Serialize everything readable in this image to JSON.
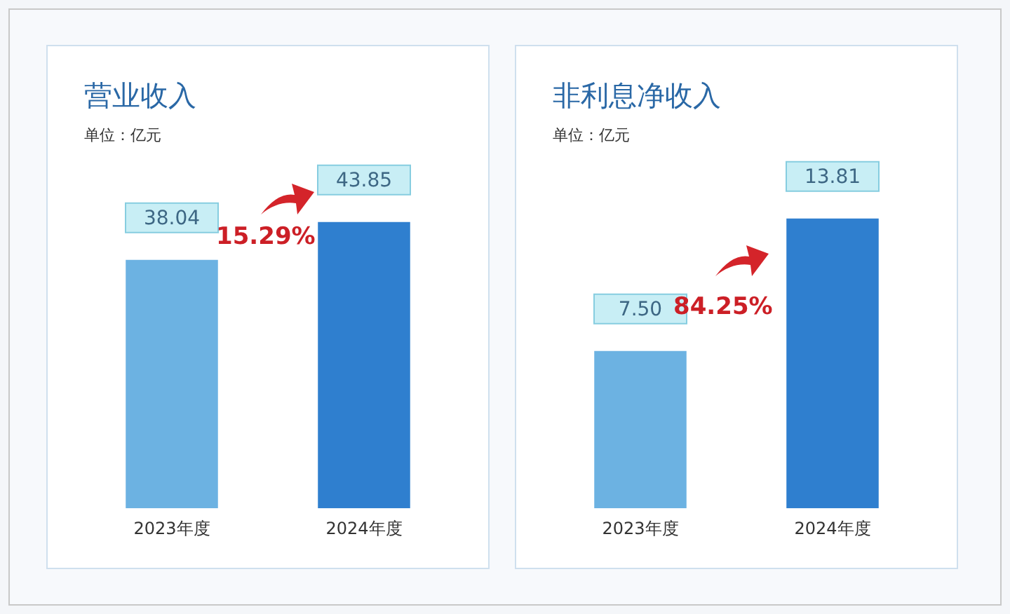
{
  "chart_data": [
    {
      "type": "bar",
      "title": "营业收入",
      "subtitle": "单位：亿元",
      "categories": [
        "2023年度",
        "2024年度"
      ],
      "values": [
        38.04,
        43.85
      ],
      "value_labels": [
        "38.04",
        "43.85"
      ],
      "colors": [
        "#6cb2e2",
        "#2f7fcf"
      ],
      "tick_labels": "x",
      "grid": false,
      "legend": false,
      "annotations": [
        "15.29%"
      ]
    },
    {
      "type": "bar",
      "title": "非利息净收入",
      "subtitle": "单位：亿元",
      "categories": [
        "2023年度",
        "2024年度"
      ],
      "values": [
        7.5,
        13.81
      ],
      "value_labels": [
        "7.50",
        "13.81"
      ],
      "colors": [
        "#6cb2e2",
        "#2f7fcf"
      ],
      "tick_labels": "x",
      "grid": false,
      "legend": false,
      "annotations": [
        "84.25%"
      ]
    }
  ]
}
